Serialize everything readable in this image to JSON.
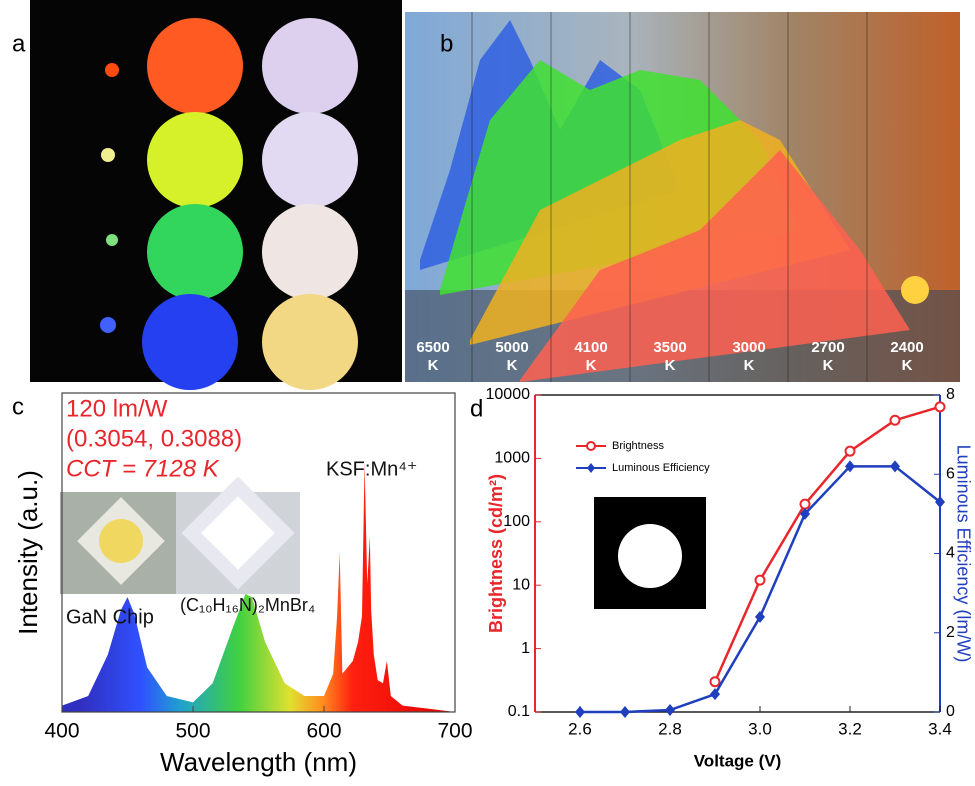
{
  "panels": {
    "a": {
      "label": "a"
    },
    "b": {
      "label": "b",
      "temperatures": [
        {
          "value": "6500",
          "unit": "K"
        },
        {
          "value": "5000",
          "unit": "K"
        },
        {
          "value": "4100",
          "unit": "K"
        },
        {
          "value": "3500",
          "unit": "K"
        },
        {
          "value": "3000",
          "unit": "K"
        },
        {
          "value": "2700",
          "unit": "K"
        },
        {
          "value": "2400",
          "unit": "K"
        }
      ]
    }
  },
  "chart_data": [
    {
      "type": "area",
      "panel_label": "c",
      "x_label": "Wavelength (nm)",
      "y_label": "Intensity (a.u.)",
      "annotations": [
        "120 lm/W",
        "(0.3054, 0.3088)",
        "CCT = 7128 K",
        "KSF:Mn⁴⁺",
        "GaN Chip",
        "(C₁₀H₁₆N)₂MnBr₄"
      ],
      "x": [
        400,
        420,
        435,
        445,
        450,
        455,
        465,
        480,
        500,
        515,
        530,
        540,
        545,
        555,
        570,
        585,
        600,
        607,
        610,
        612,
        614,
        618,
        622,
        626,
        629,
        631,
        633,
        635,
        636,
        638,
        641,
        645,
        648,
        651,
        660,
        680,
        700
      ],
      "values": [
        2,
        5,
        18,
        32,
        36,
        31,
        14,
        5,
        3,
        9,
        26,
        37,
        36,
        22,
        9,
        5,
        5,
        12,
        30,
        50,
        12,
        14,
        16,
        22,
        30,
        78,
        40,
        55,
        32,
        18,
        10,
        9,
        16,
        5,
        2,
        1,
        0
      ],
      "xlim": [
        400,
        700
      ],
      "xticks": [
        400,
        500,
        600,
        700
      ],
      "ylim": [
        0,
        100
      ]
    },
    {
      "type": "line",
      "panel_label": "d",
      "x_label": "Voltage (V)",
      "y_label": "Brightness (cd/m²)",
      "y2_label": "Luminous Efficiency (lm/W)",
      "x": [
        2.6,
        2.7,
        2.8,
        2.9,
        3.0,
        3.1,
        3.2,
        3.3,
        3.4
      ],
      "xlim": [
        2.5,
        3.4
      ],
      "xticks": [
        2.6,
        2.8,
        {
          "value": 3,
          "label": "3.0"
        },
        3.2,
        3.4
      ],
      "ylim": [
        0.1,
        10000
      ],
      "log_y": true,
      "yticks": [
        0.1,
        1,
        10,
        100,
        1000,
        10000
      ],
      "y2lim": [
        0,
        8
      ],
      "y2ticks": [
        0,
        2,
        4,
        6,
        8
      ],
      "series": [
        {
          "name": "Brightness",
          "color": "#e8262b",
          "marker": "circle",
          "values": [
            null,
            null,
            null,
            0.3,
            12,
            190,
            1300,
            4000,
            6500
          ]
        },
        {
          "name": "Luminous Efficiency",
          "color": "#1f3fbf",
          "marker": "diamond",
          "axis": "y2",
          "values": [
            0,
            0,
            0.05,
            0.45,
            2.4,
            5.0,
            6.2,
            6.2,
            5.3
          ]
        }
      ]
    }
  ]
}
